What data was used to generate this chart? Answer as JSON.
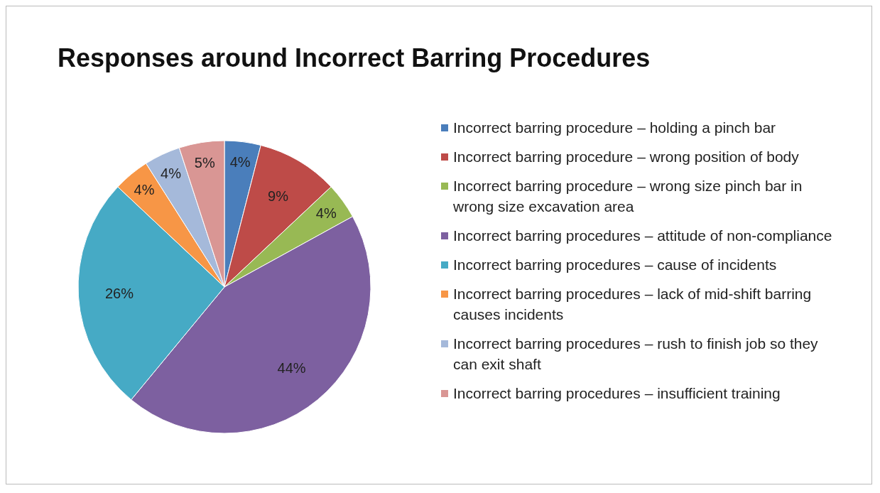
{
  "chart_data": {
    "type": "pie",
    "title": "Responses around Incorrect Barring Procedures",
    "categories": [
      "Incorrect barring procedure – holding a pinch bar",
      "Incorrect barring procedure – wrong position of body",
      "Incorrect barring procedure – wrong size pinch bar in wrong size excavation area",
      "Incorrect barring procedures – attitude of non-compliance",
      "Incorrect barring procedures – cause of incidents",
      "Incorrect barring procedures – lack of mid-shift barring causes incidents",
      "Incorrect barring procedures – rush to finish job so they can exit shaft",
      "Incorrect barring procedures – insufficient training"
    ],
    "values": [
      4,
      9,
      4,
      44,
      26,
      4,
      4,
      5
    ],
    "colors": [
      "#4a7ebb",
      "#be4b48",
      "#98b954",
      "#7d60a0",
      "#46aac5",
      "#f79646",
      "#a5b9da",
      "#d99694"
    ],
    "value_labels": [
      "4%",
      "9%",
      "4%",
      "44%",
      "26%",
      "4%",
      "4%",
      "5%"
    ],
    "legend": "right"
  }
}
